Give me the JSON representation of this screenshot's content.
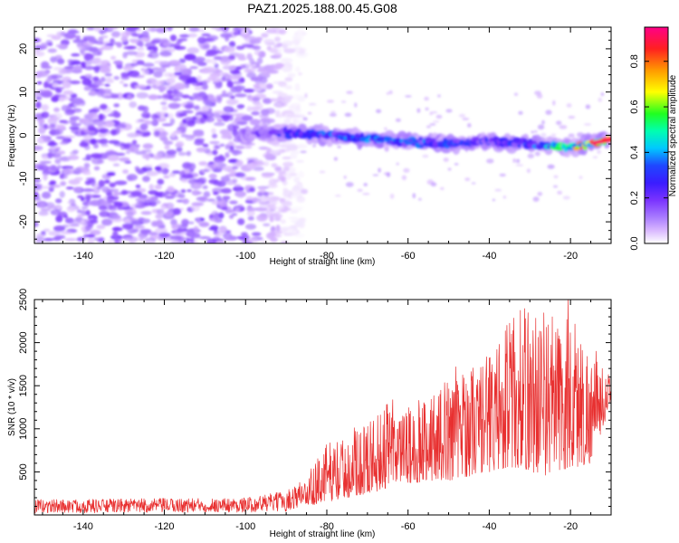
{
  "title": "PAZ1.2025.188.00.45.G08",
  "colors": {
    "snr_line": "#e83030",
    "colormap": [
      "#ffffff",
      "#d9b8ff",
      "#a97cff",
      "#7a33ff",
      "#3a1cff",
      "#1f47ff",
      "#00c8ff",
      "#00ffb0",
      "#20ff20",
      "#ffff00",
      "#ff9a00",
      "#ff2020",
      "#ff0088"
    ]
  },
  "chart_data": [
    {
      "type": "heatmap",
      "title": "PAZ1.2025.188.00.45.G08",
      "xlabel": "Height of straight line (km)",
      "ylabel": "Frequency (Hz)",
      "xlim": [
        -152,
        -10
      ],
      "ylim": [
        -25,
        25
      ],
      "x_ticks": [
        -140,
        -120,
        -100,
        -80,
        -60,
        -40,
        -20
      ],
      "y_ticks": [
        -20,
        -10,
        0,
        10,
        20
      ],
      "colorbar": {
        "label": "Normalized spectral amplitude",
        "range": [
          0,
          0.95
        ],
        "ticks": [
          0.0,
          0.2,
          0.4,
          0.6,
          0.8
        ]
      },
      "noise_region": {
        "x_range": [
          -152,
          -86
        ],
        "y_range": [
          -25,
          25
        ],
        "amplitude": [
          0.05,
          0.25
        ]
      },
      "signal_ridge": {
        "x": [
          -100,
          -90,
          -80,
          -70,
          -60,
          -50,
          -40,
          -30,
          -20,
          -10
        ],
        "y": [
          0.2,
          0.5,
          0.0,
          -0.8,
          -1.5,
          -2.0,
          -1.5,
          -2.0,
          -2.8,
          -1.0
        ],
        "amplitude": [
          0.15,
          0.3,
          0.35,
          0.38,
          0.35,
          0.33,
          0.3,
          0.35,
          0.6,
          0.9
        ]
      }
    },
    {
      "type": "line",
      "xlabel": "Height of straight line (km)",
      "ylabel": "SNR (10 * v/v)",
      "xlim": [
        -152,
        -10
      ],
      "ylim": [
        0,
        2500
      ],
      "x_ticks": [
        -140,
        -120,
        -100,
        -80,
        -60,
        -40,
        -20
      ],
      "y_ticks": [
        500,
        1000,
        1500,
        2000,
        2500
      ],
      "series": [
        {
          "envelope": {
            "x": [
              -152,
              -100,
              -90,
              -85,
              -80,
              -75,
              -70,
              -65,
              -60,
              -55,
              -50,
              -45,
              -40,
              -35,
              -30,
              -25,
              -20,
              -15,
              -10
            ],
            "min": [
              20,
              30,
              40,
              100,
              150,
              200,
              250,
              300,
              350,
              400,
              400,
              450,
              500,
              550,
              500,
              450,
              500,
              600,
              1300
            ],
            "max": [
              180,
              200,
              280,
              450,
              850,
              900,
              1100,
              1300,
              1250,
              1400,
              1600,
              1750,
              1900,
              2300,
              2500,
              2200,
              2450,
              1900,
              1600
            ]
          }
        }
      ]
    }
  ]
}
